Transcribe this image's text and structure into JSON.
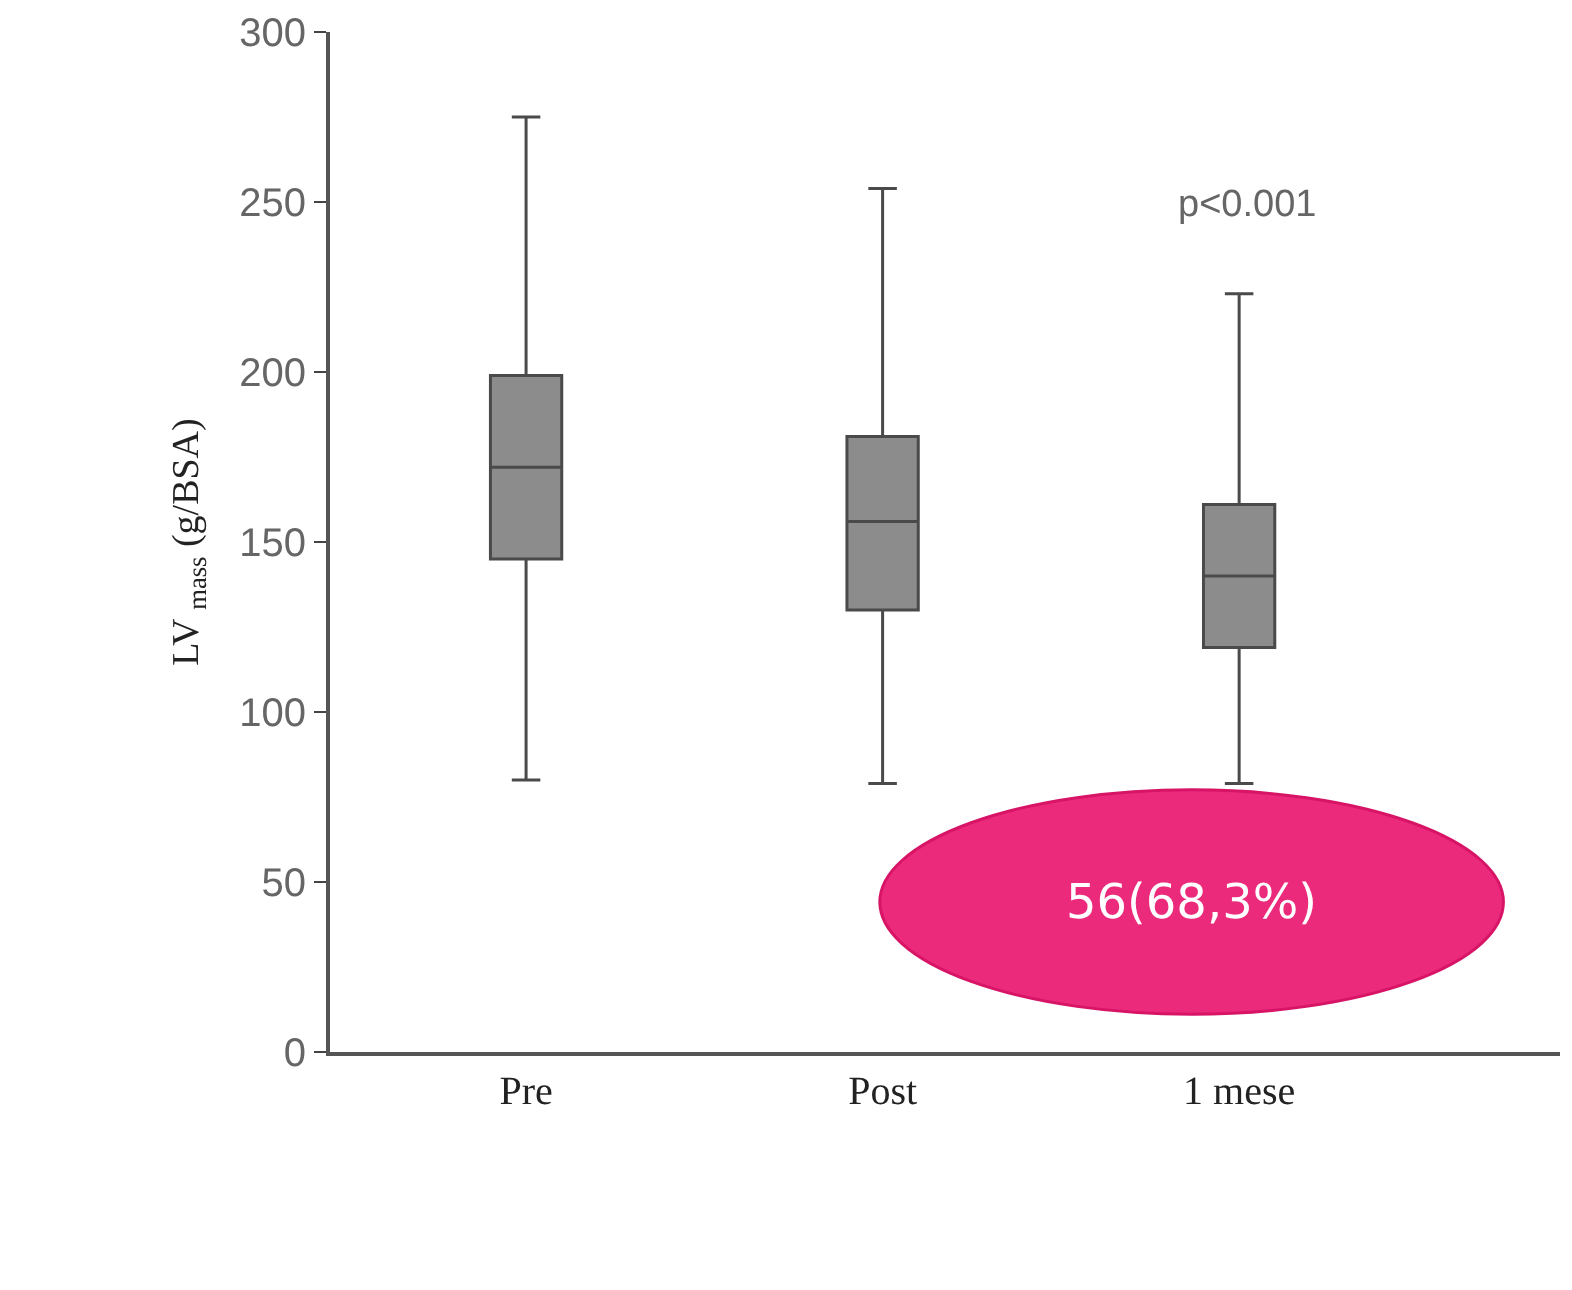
{
  "chart_data": {
    "type": "box",
    "ylabel": "LV $_{mass}$ (g/BSA)",
    "categories": [
      "Pre",
      "Post",
      "1 mese"
    ],
    "boxes": [
      {
        "low": 80,
        "q1": 145,
        "median": 172,
        "q3": 199,
        "high": 275
      },
      {
        "low": 79,
        "q1": 130,
        "median": 156,
        "q3": 181,
        "high": 254
      },
      {
        "low": 79,
        "q1": 119,
        "median": 140,
        "q3": 161,
        "high": 223
      }
    ],
    "color": "#8c8c8c",
    "ylim": [
      0,
      300
    ],
    "yticks": [
      0,
      50,
      100,
      150,
      200,
      250,
      300
    ],
    "annotations": [
      "p<0.001",
      "56(68,3%)"
    ]
  }
}
